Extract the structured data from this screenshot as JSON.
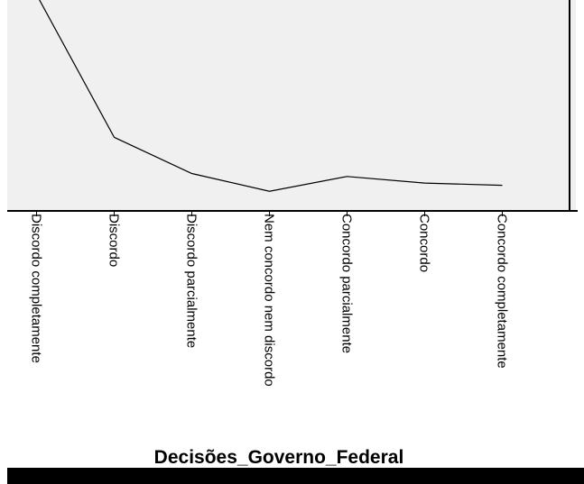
{
  "chart_data": {
    "type": "line",
    "title": "",
    "xlabel": "Decisões_Governo_Federal",
    "ylabel": "",
    "categories": [
      "Discordo completamente",
      "Discordo",
      "Discordo parcialmente",
      "Nem concordo nem discordo",
      "Concordo parcialmente",
      "Concordo",
      "Concordo completamente"
    ],
    "series": [
      {
        "values": [
          278,
          85,
          36,
          12,
          32,
          23,
          20
        ]
      }
    ],
    "ylim": [
      0,
      278
    ],
    "grid": false,
    "colors": {
      "plot_background": "#f0f0f0",
      "line": "#000000",
      "axis": "#000000"
    }
  }
}
